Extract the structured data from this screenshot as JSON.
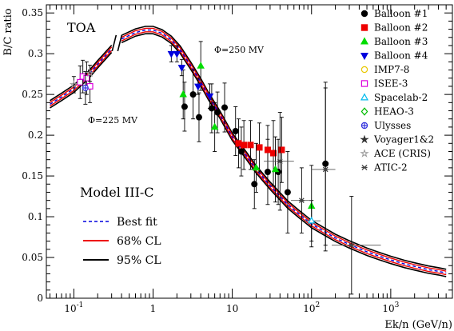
{
  "chart_data": {
    "type": "scatter",
    "ylabel": "B/C ratio",
    "xlabel": "Ek/n (GeV/n)",
    "xscale": "log",
    "xlim": [
      0.045,
      6000
    ],
    "ylim": [
      0,
      0.36
    ],
    "x_ticks": [
      {
        "v": 0.1,
        "base": "10",
        "exp": "-1"
      },
      {
        "v": 1,
        "base": "1",
        "exp": ""
      },
      {
        "v": 10,
        "base": "10",
        "exp": ""
      },
      {
        "v": 100,
        "base": "10",
        "exp": "2"
      },
      {
        "v": 1000,
        "base": "10",
        "exp": "3"
      }
    ],
    "y_ticks": [
      0,
      0.05,
      0.1,
      0.15,
      0.2,
      0.25,
      0.3,
      0.35
    ],
    "y_tick_labels": [
      "0",
      "0.05",
      "0.1",
      "0.15",
      "0.2",
      "0.25",
      "0.3",
      "0.35"
    ],
    "annotations": {
      "toa": "TOA",
      "phi_high": "Φ=250 MV",
      "phi_low": "Φ=225 MV",
      "model": "Model III-C"
    },
    "model_legend": [
      {
        "label": "Best fit",
        "color": "#0000dd",
        "style": "dashed"
      },
      {
        "label": "68% CL",
        "color": "#ee0000",
        "style": "solid"
      },
      {
        "label": "95% CL",
        "color": "#000000",
        "style": "solid"
      }
    ],
    "model_curve_low_energy": {
      "x": [
        0.05,
        0.07,
        0.1,
        0.15,
        0.2,
        0.3
      ],
      "y": [
        0.238,
        0.247,
        0.257,
        0.273,
        0.287,
        0.306
      ]
    },
    "model_curve_high_energy": {
      "x": [
        0.4,
        0.6,
        0.8,
        1.0,
        1.3,
        1.7,
        2.2,
        3,
        4,
        5,
        7,
        10,
        15,
        20,
        30,
        50,
        70,
        100,
        150,
        200,
        300,
        500,
        700,
        1000,
        1500,
        2000,
        3000,
        4000,
        5000
      ],
      "y": [
        0.318,
        0.326,
        0.329,
        0.329,
        0.325,
        0.317,
        0.305,
        0.285,
        0.265,
        0.248,
        0.225,
        0.198,
        0.175,
        0.158,
        0.138,
        0.115,
        0.103,
        0.091,
        0.081,
        0.074,
        0.066,
        0.057,
        0.052,
        0.047,
        0.042,
        0.039,
        0.035,
        0.033,
        0.031
      ]
    },
    "band_95_halfwidth": 0.0045,
    "band_68_halfwidth": 0.0022,
    "series": [
      {
        "name": "Balloon #1",
        "color": "#000000",
        "marker": "circle",
        "filled": true,
        "points": [
          [
            2.5,
            0.235,
            0.03
          ],
          [
            3.2,
            0.25,
            0.03
          ],
          [
            3.8,
            0.222,
            0.03
          ],
          [
            5.5,
            0.233,
            0.03
          ],
          [
            6.5,
            0.228,
            0.025
          ],
          [
            8,
            0.234,
            0.03
          ],
          [
            11,
            0.205,
            0.03
          ],
          [
            13,
            0.18,
            0.03
          ],
          [
            19,
            0.14,
            0.03
          ],
          [
            28,
            0.155,
            0.04
          ],
          [
            38,
            0.155,
            0.04
          ],
          [
            50,
            0.13,
            0.05
          ],
          [
            150,
            0.165,
            0.1
          ]
        ]
      },
      {
        "name": "Balloon #2",
        "color": "#ee0000",
        "marker": "square",
        "filled": true,
        "points": [
          [
            12,
            0.19,
            0.03
          ],
          [
            14,
            0.188,
            0.03
          ],
          [
            17,
            0.188,
            0.03
          ],
          [
            22,
            0.185,
            0.03
          ],
          [
            28,
            0.182,
            0.03
          ],
          [
            33,
            0.178,
            0.04
          ],
          [
            42,
            0.182,
            0.04
          ]
        ]
      },
      {
        "name": "Balloon #3",
        "color": "#00dd00",
        "marker": "triangle",
        "filled": true,
        "points": [
          [
            2.4,
            0.25,
            0.03
          ],
          [
            4,
            0.285,
            0.03
          ],
          [
            6,
            0.21,
            0.03
          ],
          [
            20,
            0.16,
            0.03
          ],
          [
            35,
            0.158,
            0.04
          ],
          [
            100,
            0.113,
            0.05
          ]
        ]
      },
      {
        "name": "Balloon #4",
        "color": "#0000dd",
        "marker": "triangle-down",
        "filled": true,
        "points": [
          [
            1.7,
            0.3,
            0.01
          ],
          [
            2.0,
            0.3,
            0.01
          ],
          [
            2.3,
            0.283,
            0.01
          ],
          [
            3.7,
            0.26,
            0.01
          ],
          [
            5.2,
            0.248,
            0.015
          ]
        ]
      },
      {
        "name": "IMP7-8",
        "color": "#e8c800",
        "marker": "circle",
        "filled": false,
        "points": []
      },
      {
        "name": "ISEE-3",
        "color": "#dd00dd",
        "marker": "square",
        "filled": false,
        "points": [
          [
            0.12,
            0.265,
            0.02
          ],
          [
            0.13,
            0.272,
            0.02
          ],
          [
            0.145,
            0.27,
            0.02
          ],
          [
            0.16,
            0.26,
            0.02
          ]
        ]
      },
      {
        "name": "Spacelab-2",
        "color": "#00bbee",
        "marker": "triangle",
        "filled": false,
        "points": [
          [
            100,
            0.095,
            0.025
          ]
        ]
      },
      {
        "name": "HEAO-3",
        "color": "#00bb00",
        "marker": "diamond",
        "filled": false,
        "points": []
      },
      {
        "name": "Ulysses",
        "color": "#3333dd",
        "marker": "cross-circle",
        "filled": false,
        "points": [
          [
            0.14,
            0.258,
            0.02
          ]
        ]
      },
      {
        "name": "Voyager1&2",
        "color": "#333333",
        "marker": "star",
        "filled": true,
        "points": []
      },
      {
        "name": "ACE (CRIS)",
        "color": "#999999",
        "marker": "star",
        "filled": false,
        "points": [
          [
            0.1,
            0.262,
            0.01
          ],
          [
            0.16,
            0.276,
            0.01
          ]
        ]
      },
      {
        "name": "ATIC-2",
        "color": "#444444",
        "marker": "asterisk",
        "filled": true,
        "points": [
          [
            40,
            0.168,
            0.06
          ],
          [
            75,
            0.12,
            0.04
          ],
          [
            150,
            0.158,
            0.1
          ],
          [
            320,
            0.065,
            0.06
          ]
        ]
      }
    ],
    "x_errors": {
      "ATIC-2": [
        [
          25,
          60
        ],
        [
          55,
          100
        ],
        [
          100,
          200
        ],
        [
          180,
          750
        ]
      ],
      "Spacelab-2": [
        [
          80,
          130
        ]
      ]
    }
  }
}
